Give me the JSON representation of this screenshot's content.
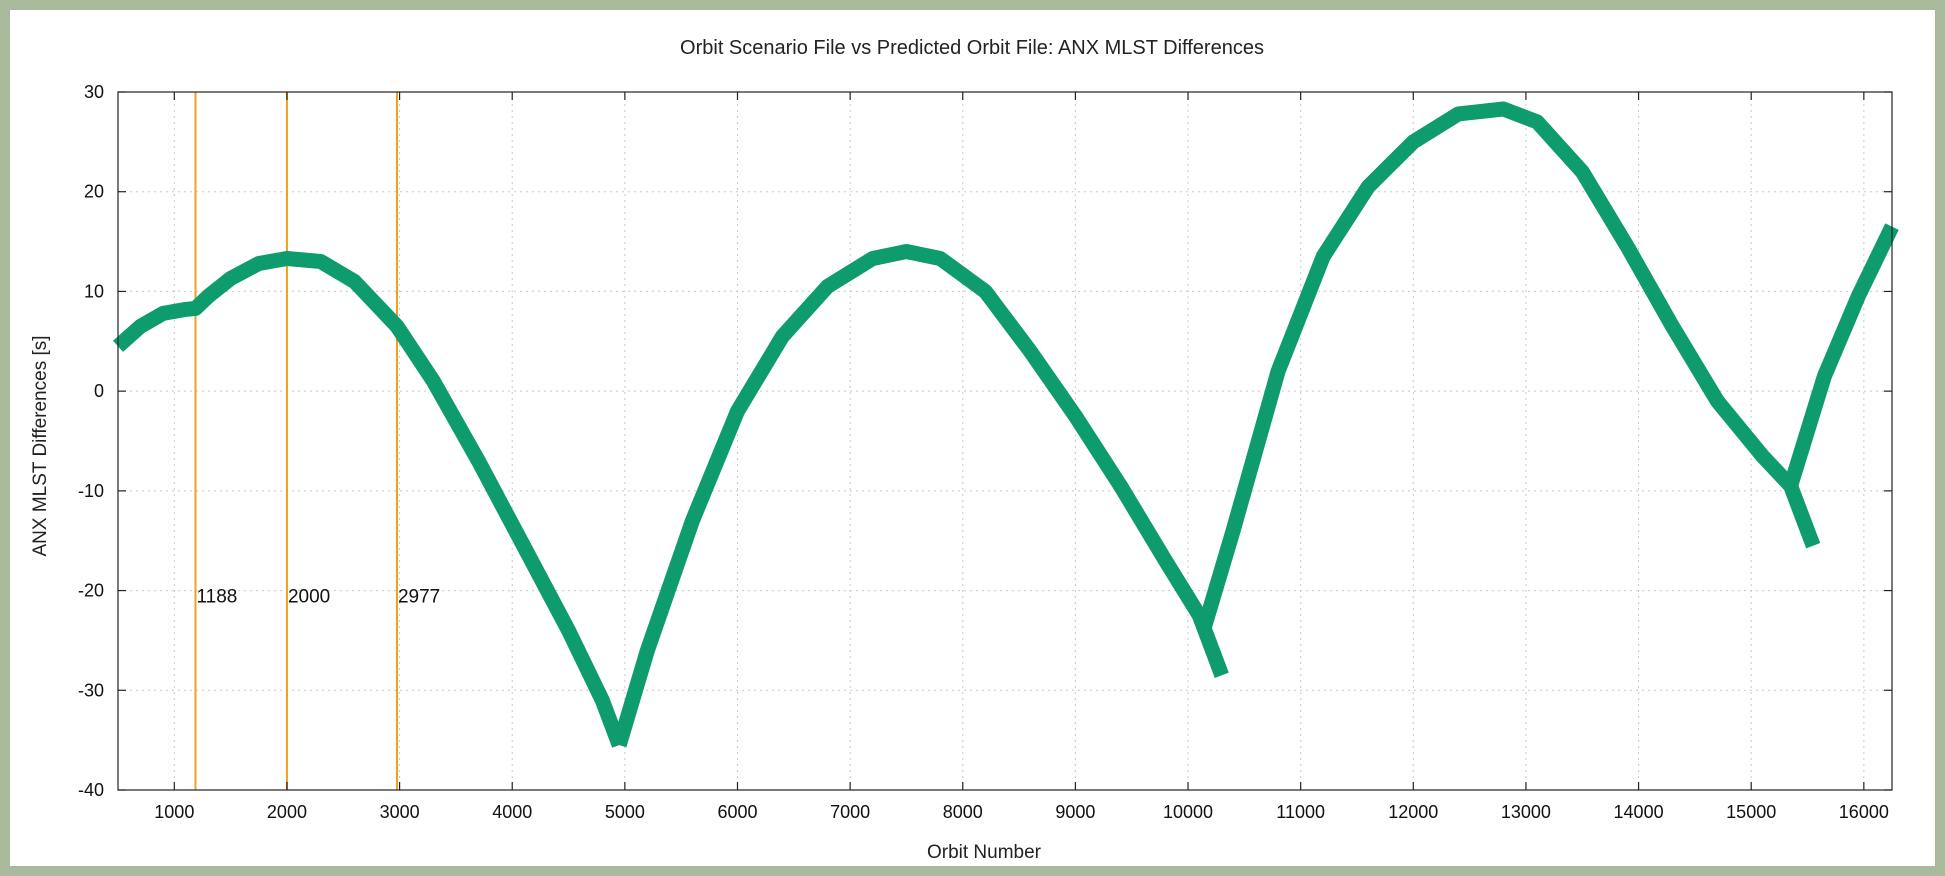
{
  "chart_data": {
    "type": "line",
    "title": "Orbit Scenario File vs Predicted Orbit File: ANX MLST Differences",
    "xlabel": "Orbit Number",
    "ylabel": "ANX MLST Differences [s]",
    "xlim": [
      500,
      16250
    ],
    "ylim": [
      -40,
      30
    ],
    "xticks": [
      1000,
      2000,
      3000,
      4000,
      5000,
      6000,
      7000,
      8000,
      9000,
      10000,
      11000,
      12000,
      13000,
      14000,
      15000,
      16000
    ],
    "yticks": [
      -40,
      -30,
      -20,
      -10,
      0,
      10,
      20,
      30
    ],
    "grid": true,
    "legend": "none",
    "colors": {
      "series": "#0e9b6e",
      "markers": "#f0a020",
      "grid": "#c8c8c8"
    },
    "vlines": [
      {
        "x": 1188,
        "label": "1188",
        "label_y": -20.5
      },
      {
        "x": 2000,
        "label": "2000",
        "label_y": -20.5
      },
      {
        "x": 2977,
        "label": "2977",
        "label_y": -20.5
      }
    ],
    "series": [
      {
        "segments": [
          [
            [
              500,
              4.5
            ],
            [
              700,
              6.5
            ],
            [
              900,
              7.8
            ],
            [
              1100,
              8.2
            ],
            [
              1188,
              8.3
            ],
            [
              1300,
              9.5
            ],
            [
              1500,
              11.3
            ],
            [
              1750,
              12.8
            ],
            [
              2000,
              13.3
            ],
            [
              2300,
              13.0
            ],
            [
              2600,
              11.0
            ],
            [
              2977,
              6.5
            ],
            [
              3300,
              1.0
            ],
            [
              3700,
              -7.0
            ],
            [
              4100,
              -15.5
            ],
            [
              4500,
              -24.0
            ],
            [
              4800,
              -31.0
            ],
            [
              4950,
              -35.5
            ]
          ],
          [
            [
              4950,
              -35.5
            ],
            [
              5200,
              -26.0
            ],
            [
              5600,
              -13.0
            ],
            [
              6000,
              -2.0
            ],
            [
              6400,
              5.5
            ],
            [
              6800,
              10.5
            ],
            [
              7200,
              13.3
            ],
            [
              7500,
              14.0
            ],
            [
              7800,
              13.3
            ],
            [
              8200,
              10.0
            ],
            [
              8600,
              4.0
            ],
            [
              9000,
              -2.5
            ],
            [
              9400,
              -9.5
            ],
            [
              9800,
              -17.0
            ],
            [
              10100,
              -22.5
            ],
            [
              10300,
              -28.5
            ]
          ],
          [
            [
              10150,
              -23.5
            ],
            [
              10400,
              -14.0
            ],
            [
              10800,
              2.0
            ],
            [
              11200,
              13.5
            ],
            [
              11600,
              20.5
            ],
            [
              12000,
              25.0
            ],
            [
              12400,
              27.8
            ],
            [
              12800,
              28.3
            ],
            [
              13100,
              27.0
            ],
            [
              13500,
              22.0
            ],
            [
              13900,
              14.5
            ],
            [
              14300,
              6.5
            ],
            [
              14700,
              -1.0
            ],
            [
              15100,
              -6.5
            ],
            [
              15350,
              -9.5
            ],
            [
              15550,
              -15.5
            ]
          ],
          [
            [
              15350,
              -9.5
            ],
            [
              15650,
              1.5
            ],
            [
              15950,
              9.5
            ],
            [
              16250,
              16.5
            ]
          ]
        ]
      }
    ]
  }
}
